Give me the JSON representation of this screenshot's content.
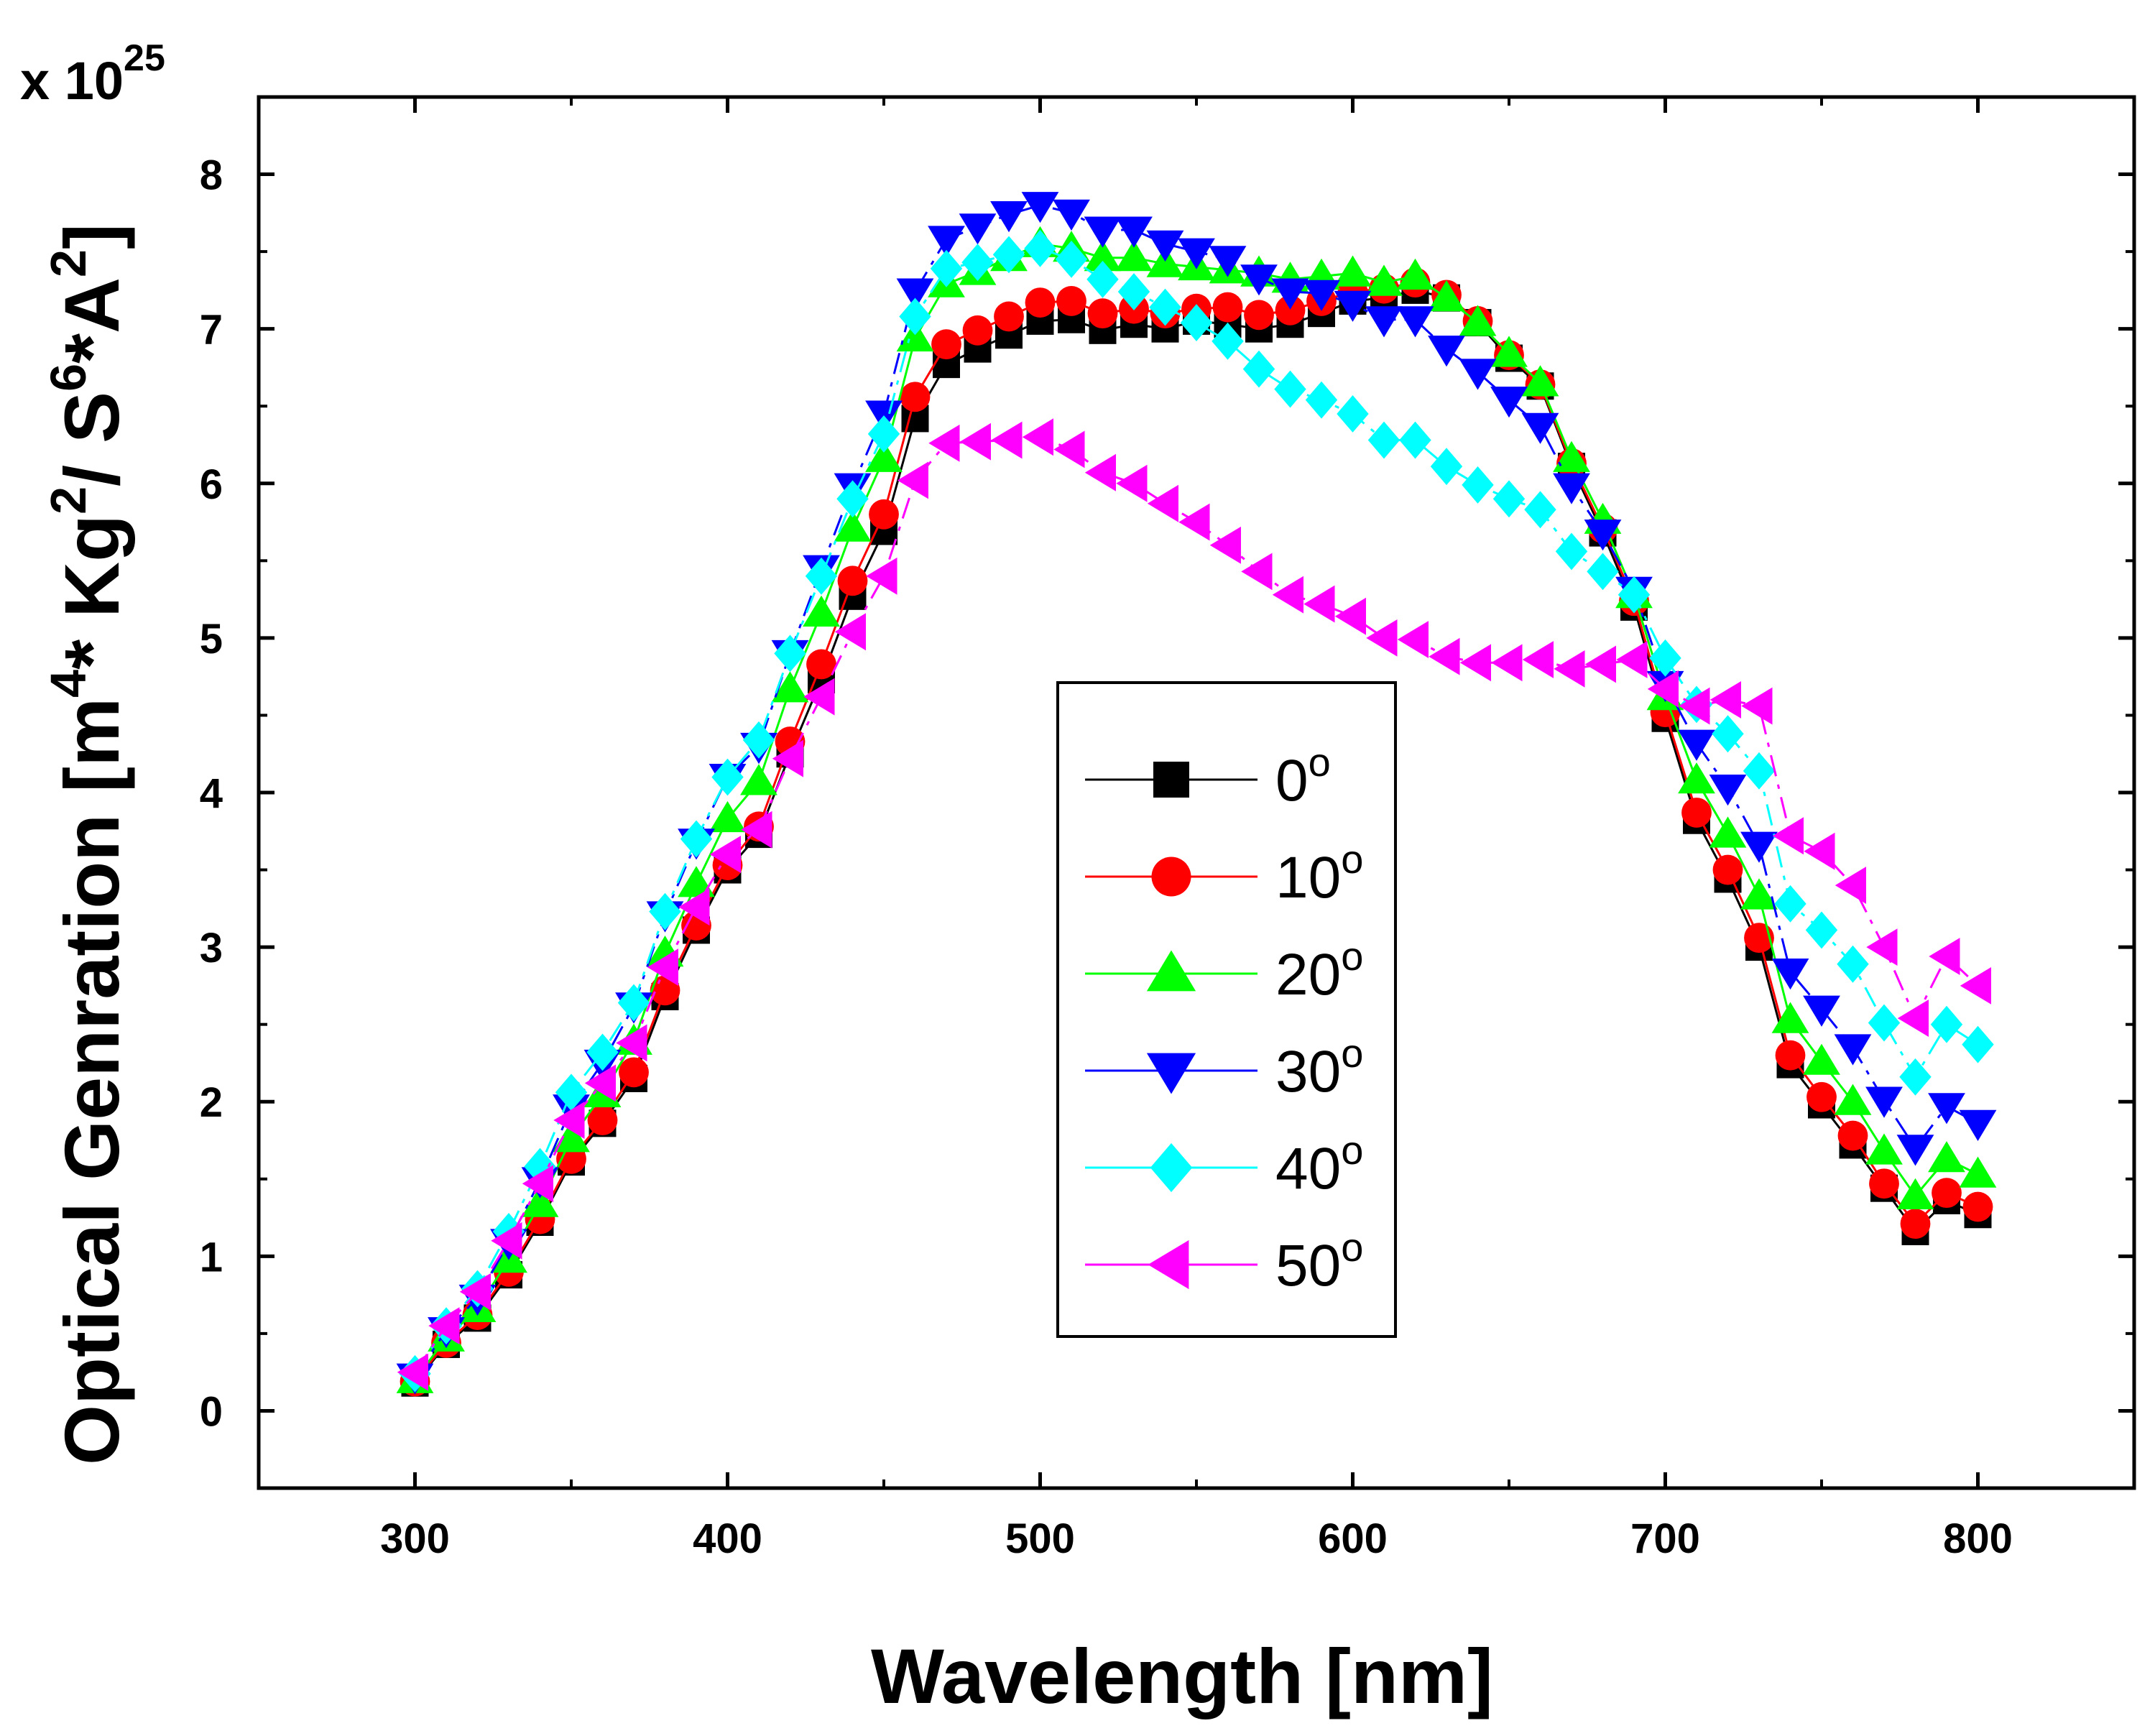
{
  "chart_data": {
    "type": "line",
    "title": "",
    "xlabel": "Wavelength [nm]",
    "ylabel_parts": [
      "Optical Genration [m",
      "4",
      "* Kg",
      "2",
      "/ S",
      "6",
      "*A",
      "2",
      "]"
    ],
    "multiplier_prefix": "x 10",
    "multiplier_exponent": "25",
    "xlim": [
      250,
      850
    ],
    "ylim": [
      -0.5,
      8.5
    ],
    "x_ticks": [
      300,
      400,
      500,
      600,
      700,
      800
    ],
    "y_ticks": [
      0,
      1,
      2,
      3,
      4,
      5,
      6,
      7,
      8
    ],
    "x_tick_labels": [
      "300",
      "400",
      "500",
      "600",
      "700",
      "800"
    ],
    "y_tick_labels": [
      "0",
      "1",
      "2",
      "3",
      "4",
      "5",
      "6",
      "7",
      "8"
    ],
    "legend_placement": "center",
    "x": [
      300,
      310,
      320,
      330,
      340,
      350,
      360,
      370,
      380,
      390,
      400,
      410,
      420,
      430,
      440,
      450,
      460,
      470,
      480,
      490,
      500,
      510,
      520,
      530,
      540,
      550,
      560,
      570,
      580,
      590,
      600,
      610,
      620,
      630,
      640,
      650,
      660,
      670,
      680,
      690,
      700,
      710,
      720,
      730,
      740,
      750,
      760,
      770,
      780,
      790,
      800
    ],
    "series": [
      {
        "name": "0",
        "unit": "o",
        "color": "#000000",
        "marker": "square",
        "dash": "solid",
        "values": [
          0.18,
          0.43,
          0.6,
          0.88,
          1.22,
          1.61,
          1.86,
          2.15,
          2.68,
          3.11,
          3.5,
          3.73,
          4.25,
          4.73,
          5.27,
          5.69,
          6.42,
          6.77,
          6.87,
          6.96,
          7.05,
          7.06,
          6.99,
          7.03,
          7.0,
          7.05,
          7.03,
          7.0,
          7.03,
          7.1,
          7.18,
          7.2,
          7.25,
          7.2,
          7.04,
          6.81,
          6.63,
          6.11,
          5.68,
          5.2,
          4.48,
          3.82,
          3.44,
          3.0,
          2.24,
          1.98,
          1.72,
          1.44,
          1.16,
          1.36,
          1.27
        ]
      },
      {
        "name": "10",
        "unit": "o",
        "color": "#ff0000",
        "marker": "circle",
        "dash": "solid",
        "values": [
          0.19,
          0.44,
          0.62,
          0.9,
          1.24,
          1.63,
          1.88,
          2.19,
          2.72,
          3.14,
          3.53,
          3.78,
          4.33,
          4.83,
          5.37,
          5.8,
          6.56,
          6.9,
          6.99,
          7.08,
          7.17,
          7.18,
          7.1,
          7.13,
          7.1,
          7.13,
          7.14,
          7.09,
          7.12,
          7.18,
          7.24,
          7.26,
          7.3,
          7.22,
          7.05,
          6.83,
          6.64,
          6.13,
          5.71,
          5.24,
          4.52,
          3.87,
          3.5,
          3.06,
          2.3,
          2.03,
          1.78,
          1.47,
          1.21,
          1.41,
          1.32
        ]
      },
      {
        "name": "20",
        "unit": "o",
        "color": "#00ff00",
        "marker": "triangle-up",
        "dash": "solid",
        "values": [
          0.2,
          0.47,
          0.66,
          0.98,
          1.34,
          1.76,
          2.05,
          2.39,
          2.96,
          3.41,
          3.83,
          4.07,
          4.67,
          5.16,
          5.71,
          6.16,
          6.94,
          7.29,
          7.37,
          7.46,
          7.55,
          7.52,
          7.46,
          7.46,
          7.42,
          7.4,
          7.38,
          7.36,
          7.32,
          7.34,
          7.36,
          7.3,
          7.34,
          7.2,
          7.04,
          6.84,
          6.65,
          6.16,
          5.76,
          5.28,
          4.62,
          4.08,
          3.73,
          3.33,
          2.53,
          2.26,
          2.0,
          1.68,
          1.39,
          1.63,
          1.53
        ]
      },
      {
        "name": "30",
        "unit": "o",
        "color": "#0000ff",
        "marker": "triangle-down",
        "dash": "dashdot",
        "values": [
          0.22,
          0.52,
          0.73,
          1.09,
          1.49,
          1.96,
          2.25,
          2.62,
          3.21,
          3.68,
          4.1,
          4.3,
          4.9,
          5.45,
          5.98,
          6.45,
          7.24,
          7.58,
          7.66,
          7.74,
          7.8,
          7.75,
          7.64,
          7.64,
          7.55,
          7.5,
          7.45,
          7.33,
          7.24,
          7.23,
          7.16,
          7.06,
          7.06,
          6.87,
          6.72,
          6.54,
          6.37,
          5.98,
          5.68,
          5.31,
          4.7,
          4.32,
          4.03,
          3.66,
          2.84,
          2.6,
          2.35,
          2.01,
          1.7,
          1.97,
          1.86
        ]
      },
      {
        "name": "40",
        "unit": "o",
        "color": "#00ffff",
        "marker": "diamond",
        "dash": "dashdot",
        "values": [
          0.24,
          0.55,
          0.79,
          1.16,
          1.58,
          2.06,
          2.32,
          2.64,
          3.23,
          3.7,
          4.1,
          4.34,
          4.9,
          5.4,
          5.9,
          6.32,
          7.08,
          7.39,
          7.43,
          7.48,
          7.52,
          7.45,
          7.32,
          7.24,
          7.14,
          7.04,
          6.92,
          6.74,
          6.61,
          6.54,
          6.45,
          6.28,
          6.28,
          6.11,
          5.99,
          5.9,
          5.83,
          5.56,
          5.43,
          5.28,
          4.87,
          4.57,
          4.38,
          4.14,
          3.28,
          3.11,
          2.89,
          2.51,
          2.16,
          2.5,
          2.37
        ]
      },
      {
        "name": "50",
        "unit": "o",
        "color": "#ff00ff",
        "marker": "triangle-left",
        "dash": "dashdot",
        "values": [
          0.25,
          0.55,
          0.77,
          1.1,
          1.47,
          1.88,
          2.12,
          2.38,
          2.87,
          3.26,
          3.6,
          3.76,
          4.22,
          4.62,
          5.04,
          5.4,
          6.02,
          6.26,
          6.27,
          6.28,
          6.3,
          6.22,
          6.07,
          6.0,
          5.87,
          5.75,
          5.6,
          5.43,
          5.28,
          5.22,
          5.14,
          5.0,
          4.99,
          4.88,
          4.84,
          4.84,
          4.86,
          4.8,
          4.83,
          4.86,
          4.67,
          4.56,
          4.6,
          4.56,
          3.72,
          3.62,
          3.4,
          3.0,
          2.54,
          2.94,
          2.75
        ]
      }
    ]
  }
}
